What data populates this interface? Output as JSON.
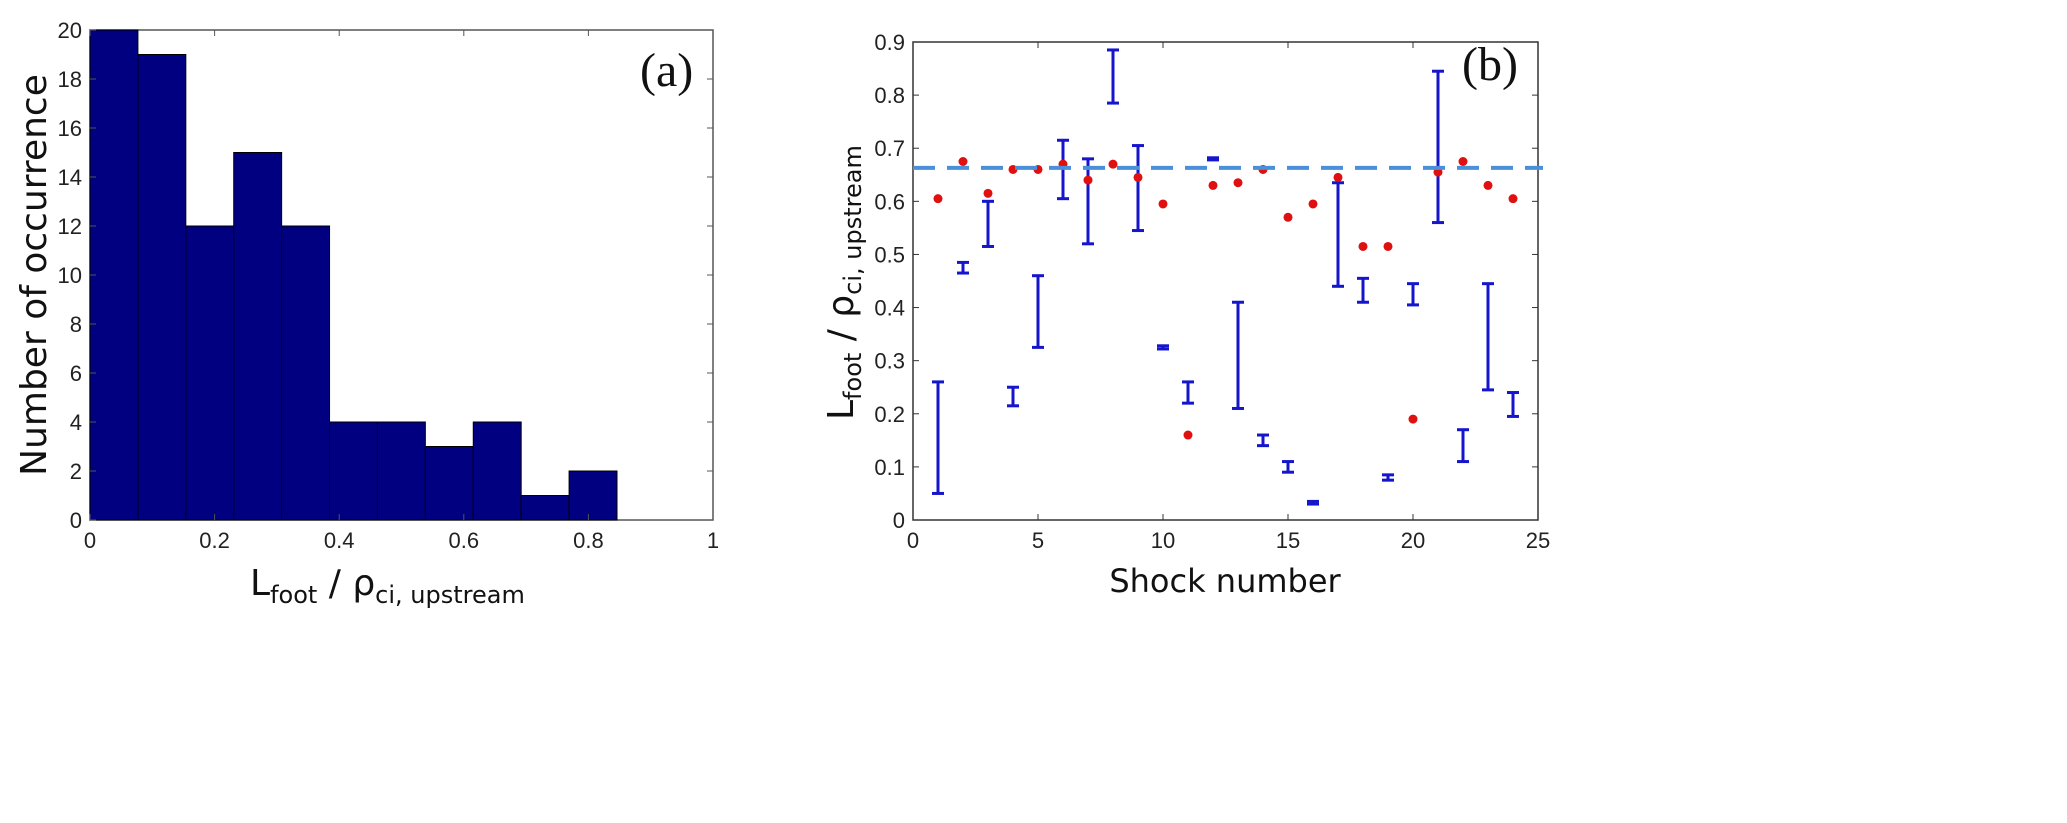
{
  "chart_data": [
    {
      "type": "bar",
      "panel_label": "(a)",
      "ylabel": "Number of occurrence",
      "xlabel_main": "L",
      "xlabel_sub1": "foot",
      "xlabel_mid": " / ρ",
      "xlabel_sub2": "ci, upstream",
      "xlim": [
        0,
        1
      ],
      "ylim": [
        0,
        20
      ],
      "xticks": [
        "0",
        "0.2",
        "0.4",
        "0.6",
        "0.8",
        "1"
      ],
      "yticks": [
        "0",
        "2",
        "4",
        "6",
        "8",
        "10",
        "12",
        "14",
        "16",
        "18",
        "20"
      ],
      "bin_width": 0.0769,
      "values": [
        20,
        19,
        12,
        15,
        12,
        4,
        4,
        3,
        4,
        1,
        2
      ],
      "bar_color": "#000080"
    },
    {
      "type": "scatter",
      "panel_label": "(b)",
      "xlabel": "Shock number",
      "ylabel_main": "L",
      "ylabel_sub1": "foot",
      "ylabel_mid": " / ρ",
      "ylabel_sub2": "ci, upstream",
      "xlim": [
        0,
        25
      ],
      "ylim": [
        0,
        0.9
      ],
      "xticks": [
        "0",
        "5",
        "10",
        "15",
        "20",
        "25"
      ],
      "yticks": [
        "0",
        "0.1",
        "0.2",
        "0.3",
        "0.4",
        "0.5",
        "0.6",
        "0.7",
        "0.8",
        "0.9"
      ],
      "x": [
        1,
        2,
        3,
        4,
        5,
        6,
        7,
        8,
        9,
        10,
        11,
        12,
        13,
        14,
        15,
        16,
        17,
        18,
        19,
        20,
        21,
        22,
        23,
        24
      ],
      "points": [
        0.605,
        0.675,
        0.615,
        0.66,
        0.66,
        0.67,
        0.64,
        0.67,
        0.645,
        0.595,
        0.16,
        0.63,
        0.635,
        0.66,
        0.57,
        0.595,
        0.645,
        0.515,
        0.515,
        0.19,
        0.655,
        0.675,
        0.63,
        0.605
      ],
      "errorbar_low": [
        0.05,
        0.465,
        0.515,
        0.215,
        0.325,
        0.605,
        0.52,
        0.785,
        0.545,
        0.322,
        0.22,
        0.678,
        0.21,
        0.14,
        0.09,
        0.03,
        0.44,
        0.41,
        0.075,
        0.405,
        0.56,
        0.11,
        0.245,
        0.195
      ],
      "errorbar_high": [
        0.26,
        0.485,
        0.6,
        0.25,
        0.46,
        0.715,
        0.68,
        0.885,
        0.705,
        0.328,
        0.26,
        0.682,
        0.41,
        0.16,
        0.11,
        0.035,
        0.635,
        0.455,
        0.085,
        0.445,
        0.845,
        0.17,
        0.445,
        0.24
      ],
      "reference_line": 0.663,
      "point_color": "#e01010",
      "errorbar_color": "#1515cc",
      "reference_color": "#4a90d9"
    }
  ]
}
